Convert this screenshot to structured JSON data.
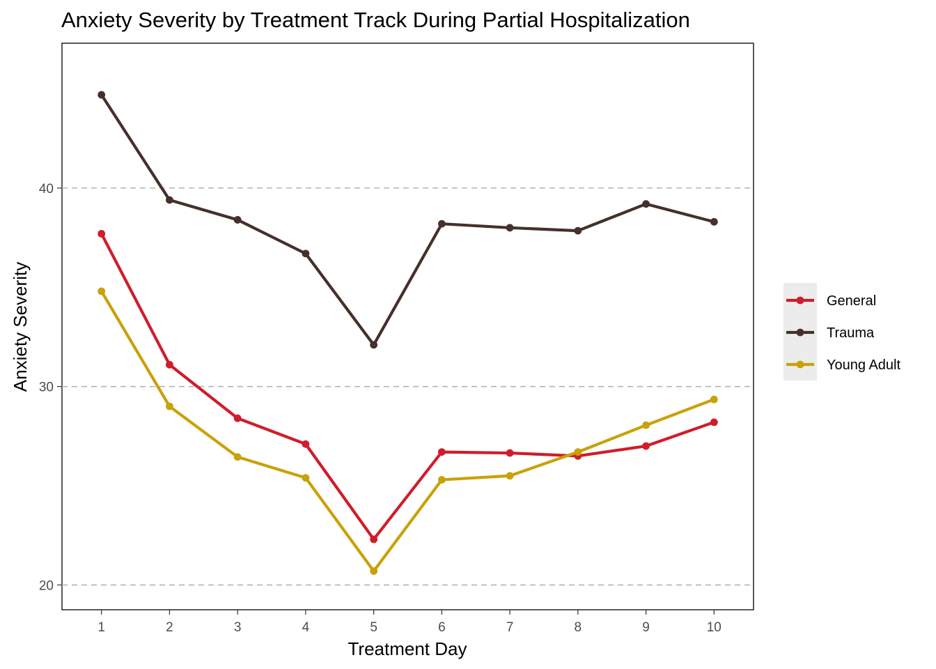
{
  "chart_data": {
    "type": "line",
    "title": "Anxiety Severity by Treatment Track During Partial Hospitalization",
    "xlabel": "Treatment Day",
    "ylabel": "Anxiety Severity",
    "x": [
      1,
      2,
      3,
      4,
      5,
      6,
      7,
      8,
      9,
      10
    ],
    "x_tick_labels": [
      "1",
      "2",
      "3",
      "4",
      "5",
      "6",
      "7",
      "8",
      "9",
      "10"
    ],
    "y_ticks": [
      20,
      30,
      40
    ],
    "y_tick_labels": [
      "20",
      "30",
      "40"
    ],
    "xlim": [
      0.42,
      10.58
    ],
    "ylim": [
      18.75,
      47.3
    ],
    "grid": "major y dashed",
    "legend_position": "right",
    "series": [
      {
        "name": "General",
        "color": "#d01c2a",
        "values": [
          37.7,
          31.1,
          28.4,
          27.1,
          22.3,
          26.7,
          26.65,
          26.5,
          27.0,
          28.2
        ]
      },
      {
        "name": "Trauma",
        "color": "#45302b",
        "values": [
          44.7,
          39.4,
          38.4,
          36.7,
          32.1,
          38.2,
          38.0,
          37.85,
          39.2,
          38.3
        ]
      },
      {
        "name": "Young Adult",
        "color": "#c9a10a",
        "values": [
          34.8,
          29.0,
          26.45,
          25.4,
          20.7,
          25.3,
          25.5,
          26.7,
          28.05,
          29.35
        ]
      }
    ]
  }
}
